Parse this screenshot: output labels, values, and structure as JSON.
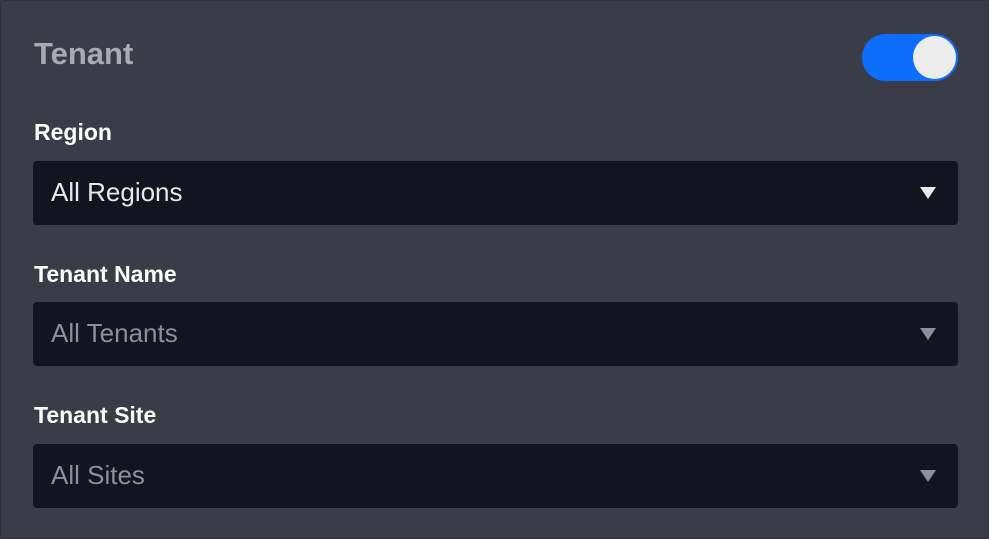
{
  "header": {
    "title": "Tenant",
    "toggle_on": true,
    "accent": "#0d6efd"
  },
  "fields": [
    {
      "label": "Region",
      "value": "All Regions"
    },
    {
      "label": "Tenant Name",
      "value": "All Tenants"
    },
    {
      "label": "Tenant Site",
      "value": "All Sites"
    }
  ]
}
